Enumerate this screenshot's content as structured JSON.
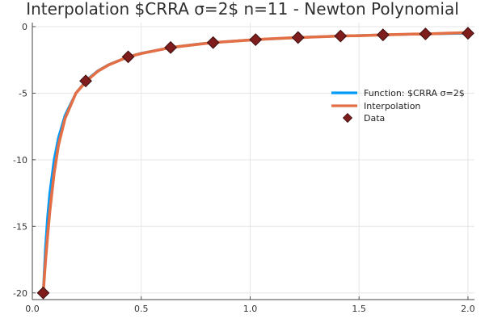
{
  "chart_data": {
    "type": "line",
    "title": "Interpolation $CRRA    σ=2$ n=11 - Newton Polynomial",
    "xlabel": "",
    "ylabel": "",
    "xlim": [
      0.0,
      2.03
    ],
    "ylim": [
      -20.5,
      0.3
    ],
    "xticks": [
      0.0,
      0.5,
      1.0,
      1.5,
      2.0
    ],
    "xtick_labels": [
      "0.0",
      "0.5",
      "1.0",
      "1.5",
      "2.0"
    ],
    "yticks": [
      0,
      -5,
      -10,
      -15,
      -20
    ],
    "ytick_labels": [
      "0",
      "-5",
      "-10",
      "-15",
      "-20"
    ],
    "grid": true,
    "legend_position": "right",
    "series": [
      {
        "name": "Function: $CRRA    σ=2$",
        "kind": "line",
        "color": "#009af9",
        "x": [
          0.05,
          0.06,
          0.07,
          0.08,
          0.1,
          0.12,
          0.15,
          0.2,
          0.25,
          0.3,
          0.35,
          0.44,
          0.5,
          0.64,
          0.75,
          0.83,
          1.0,
          1.03,
          1.22,
          1.25,
          1.42,
          1.5,
          1.61,
          1.75,
          1.81,
          2.0
        ],
        "y": [
          -20.0,
          -16.67,
          -14.29,
          -12.5,
          -10.0,
          -8.33,
          -6.67,
          -5.0,
          -4.0,
          -3.33,
          -2.86,
          -2.27,
          -2.0,
          -1.56,
          -1.33,
          -1.2,
          -1.0,
          -0.97,
          -0.82,
          -0.8,
          -0.7,
          -0.67,
          -0.62,
          -0.57,
          -0.55,
          -0.5
        ]
      },
      {
        "name": "Interpolation",
        "kind": "line",
        "color": "#e26f46",
        "x": [
          0.05,
          0.06,
          0.07,
          0.08,
          0.1,
          0.12,
          0.15,
          0.2,
          0.25,
          0.3,
          0.35,
          0.44,
          0.5,
          0.64,
          0.75,
          0.83,
          1.0,
          1.03,
          1.22,
          1.25,
          1.42,
          1.5,
          1.61,
          1.75,
          1.81,
          1.9,
          2.0
        ],
        "y": [
          -20.0,
          -17.7,
          -15.7,
          -13.9,
          -11.0,
          -8.9,
          -6.9,
          -5.0,
          -4.06,
          -3.36,
          -2.88,
          -2.27,
          -2.02,
          -1.56,
          -1.35,
          -1.2,
          -1.01,
          -0.97,
          -0.82,
          -0.81,
          -0.7,
          -0.68,
          -0.62,
          -0.56,
          -0.55,
          -0.5,
          -0.45
        ]
      },
      {
        "name": "Data",
        "kind": "scatter",
        "marker": "diamond",
        "color": "#7f1d1d",
        "x": [
          0.05,
          0.245,
          0.44,
          0.635,
          0.83,
          1.025,
          1.22,
          1.415,
          1.61,
          1.805,
          2.0
        ],
        "y": [
          -20.0,
          -4.08,
          -2.27,
          -1.57,
          -1.2,
          -0.98,
          -0.82,
          -0.71,
          -0.62,
          -0.55,
          -0.5
        ]
      }
    ]
  }
}
